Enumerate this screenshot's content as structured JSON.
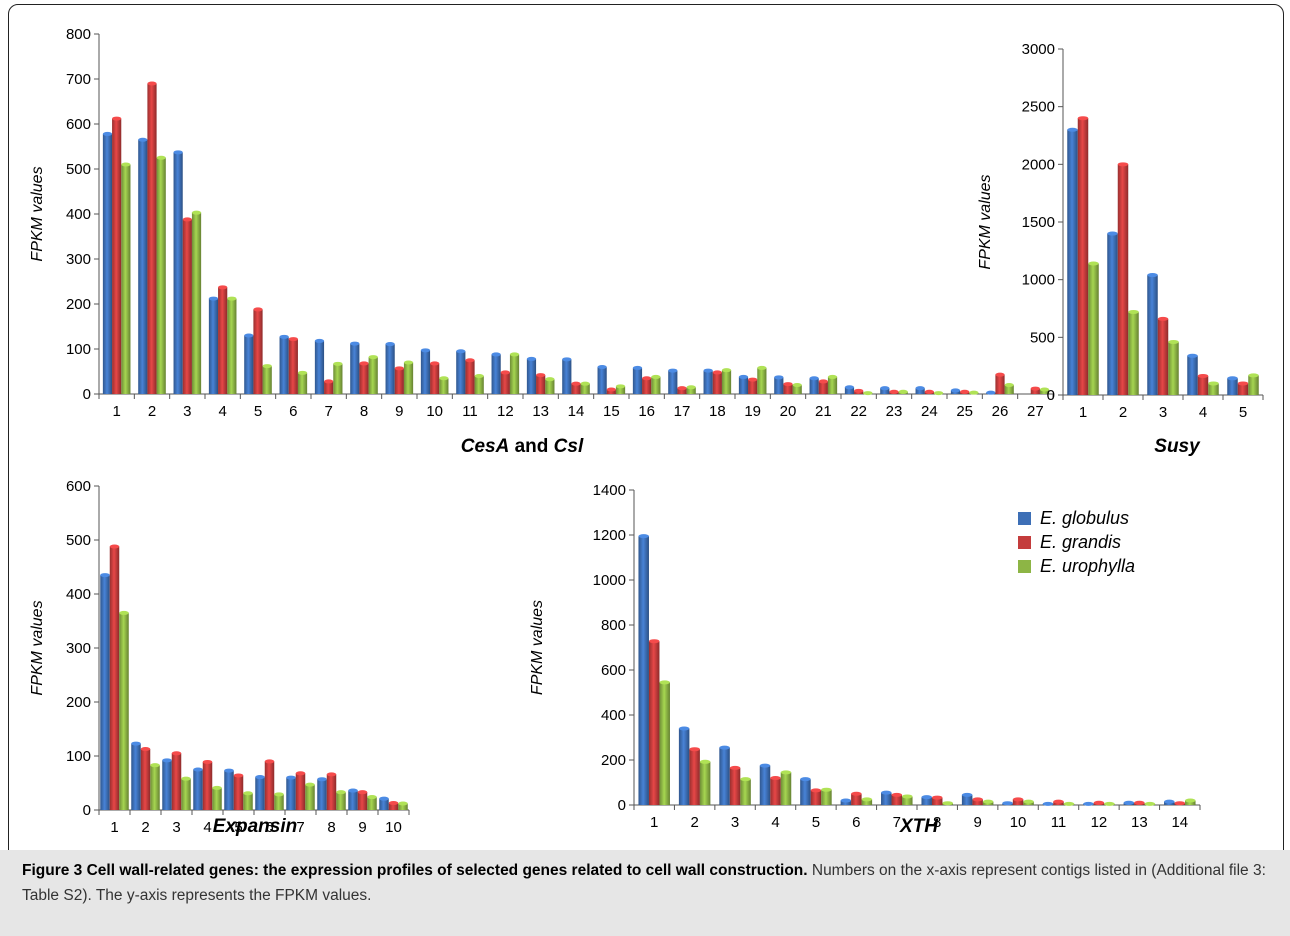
{
  "colors": {
    "E. globulus": "#3d6fb6",
    "E. grandis": "#c43c3c",
    "E. urophylla": "#8db545"
  },
  "legend": [
    {
      "label": "E. globulus",
      "color": "#3d6fb6"
    },
    {
      "label": "E. grandis",
      "color": "#c43c3c"
    },
    {
      "label": "E. urophylla",
      "color": "#8db545"
    }
  ],
  "caption": {
    "bold": "Figure 3 Cell wall-related genes: the expression profiles of selected genes related to cell wall construction.",
    "text": " Numbers on the x-axis represent contigs listed in (Additional file 3: Table S2). The y-axis represents the FPKM values."
  },
  "chart_data": [
    {
      "type": "bar",
      "title_parts": [
        "CesA",
        " and ",
        "Csl"
      ],
      "ylabel": "FPKM values",
      "ylim": [
        0,
        800
      ],
      "yticks": [
        0,
        100,
        200,
        300,
        400,
        500,
        600,
        700,
        800
      ],
      "categories": [
        "1",
        "2",
        "3",
        "4",
        "5",
        "6",
        "7",
        "8",
        "9",
        "10",
        "11",
        "12",
        "13",
        "14",
        "15",
        "16",
        "17",
        "18",
        "19",
        "20",
        "21",
        "22",
        "23",
        "24",
        "25",
        "26",
        "27"
      ],
      "series": [
        {
          "name": "E. globulus",
          "values": [
            578,
            565,
            537,
            212,
            130,
            127,
            118,
            112,
            111,
            97,
            95,
            88,
            78,
            77,
            60,
            58,
            52,
            52,
            38,
            37,
            35,
            15,
            13,
            13,
            8,
            3,
            0
          ]
        },
        {
          "name": "E. grandis",
          "values": [
            612,
            690,
            388,
            237,
            188,
            122,
            28,
            68,
            57,
            68,
            75,
            48,
            42,
            23,
            10,
            35,
            13,
            48,
            32,
            22,
            28,
            7,
            5,
            5,
            5,
            43,
            12
          ]
        },
        {
          "name": "E. urophylla",
          "values": [
            510,
            525,
            403,
            212,
            62,
            47,
            67,
            82,
            70,
            35,
            40,
            88,
            33,
            23,
            17,
            38,
            15,
            53,
            58,
            20,
            38,
            2,
            5,
            2,
            3,
            20,
            10
          ]
        }
      ]
    },
    {
      "type": "bar",
      "title_parts": [
        "Susy"
      ],
      "ylabel": "FPKM values",
      "ylim": [
        0,
        3000
      ],
      "yticks": [
        0,
        500,
        1000,
        1500,
        2000,
        2500,
        3000
      ],
      "categories": [
        "1",
        "2",
        "3",
        "4",
        "5"
      ],
      "series": [
        {
          "name": "E. globulus",
          "values": [
            2300,
            1400,
            1040,
            340,
            145
          ]
        },
        {
          "name": "E. grandis",
          "values": [
            2400,
            2000,
            660,
            165,
            100
          ]
        },
        {
          "name": "E. urophylla",
          "values": [
            1140,
            720,
            460,
            100,
            170
          ]
        }
      ]
    },
    {
      "type": "bar",
      "title_parts": [
        "Expansin"
      ],
      "ylabel": "FPKM values",
      "ylim": [
        0,
        600
      ],
      "yticks": [
        0,
        100,
        200,
        300,
        400,
        500,
        600
      ],
      "categories": [
        "1",
        "2",
        "3",
        "4",
        "5",
        "6",
        "7",
        "8",
        "9",
        "10"
      ],
      "series": [
        {
          "name": "E. globulus",
          "values": [
            435,
            123,
            92,
            75,
            73,
            61,
            60,
            57,
            36,
            21
          ]
        },
        {
          "name": "E. grandis",
          "values": [
            488,
            113,
            105,
            89,
            64,
            90,
            68,
            66,
            33,
            13
          ]
        },
        {
          "name": "E. urophylla",
          "values": [
            365,
            83,
            58,
            41,
            31,
            29,
            47,
            33,
            24,
            12
          ]
        }
      ]
    },
    {
      "type": "bar",
      "title_parts": [
        "XTH"
      ],
      "ylabel": "FPKM values",
      "ylim": [
        0,
        1400
      ],
      "yticks": [
        0,
        200,
        400,
        600,
        800,
        1000,
        1200,
        1400
      ],
      "categories": [
        "1",
        "2",
        "3",
        "4",
        "5",
        "6",
        "7",
        "8",
        "9",
        "10",
        "11",
        "12",
        "13",
        "14"
      ],
      "series": [
        {
          "name": "E. globulus",
          "values": [
            1195,
            340,
            255,
            175,
            115,
            20,
            55,
            35,
            45,
            8,
            5,
            5,
            10,
            15
          ]
        },
        {
          "name": "E. grandis",
          "values": [
            728,
            248,
            165,
            120,
            65,
            50,
            45,
            33,
            25,
            25,
            15,
            10,
            10,
            8
          ]
        },
        {
          "name": "E. urophylla",
          "values": [
            545,
            192,
            115,
            145,
            68,
            25,
            38,
            8,
            15,
            15,
            5,
            5,
            5,
            20
          ]
        }
      ]
    }
  ]
}
